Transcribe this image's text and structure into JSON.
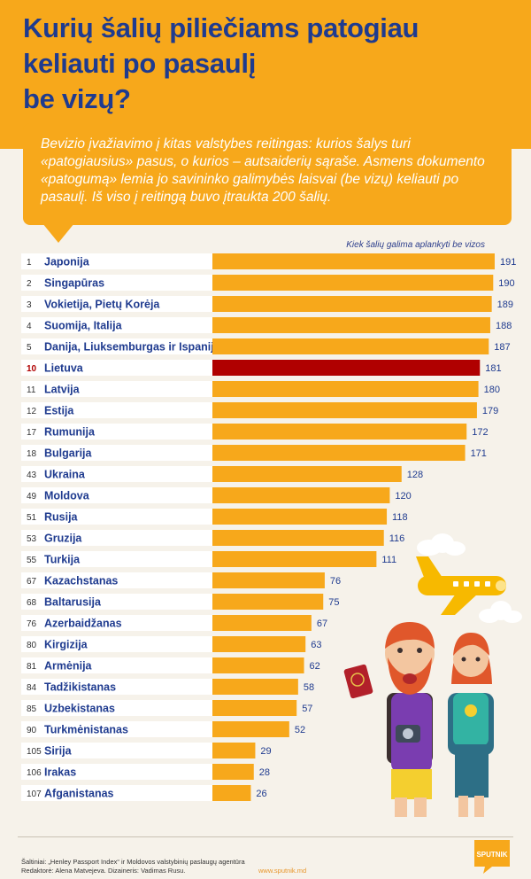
{
  "header": {
    "title_lines": [
      "Kurių šalių piliečiams patogiau",
      "keliauti po pasaulį",
      "be vizų?"
    ]
  },
  "intro": {
    "text": "Bevizio įvažiavimo į kitas valstybes reitingas: kurios šalys turi «patogiausius» pasus, o kurios – autsaiderių sąraše. Asmens dokumento «patogumą» lemia jo savininko galimybės laisvai (be vizų) keliauti po pasaulį. Iš viso į reitingą buvo įtraukta 200 šalių."
  },
  "colors": {
    "accent": "#f7a81b",
    "highlight": "#b00000",
    "text": "#1f3b8f"
  },
  "chart_data": {
    "type": "bar",
    "orientation": "horizontal",
    "axis_label": "Kiek šalių galima aplankyti be vizos",
    "xlim": [
      0,
      200
    ],
    "highlight_rank": "10",
    "rows": [
      {
        "rank": "1",
        "country": "Japonija",
        "value": 191
      },
      {
        "rank": "2",
        "country": "Singapūras",
        "value": 190
      },
      {
        "rank": "3",
        "country": "Vokietija, Pietų Korėja",
        "value": 189
      },
      {
        "rank": "4",
        "country": "Suomija, Italija",
        "value": 188
      },
      {
        "rank": "5",
        "country": "Danija, Liuksemburgas ir Ispanija",
        "value": 187
      },
      {
        "rank": "10",
        "country": "Lietuva",
        "value": 181
      },
      {
        "rank": "11",
        "country": "Latvija",
        "value": 180
      },
      {
        "rank": "12",
        "country": "Estija",
        "value": 179
      },
      {
        "rank": "17",
        "country": "Rumunija",
        "value": 172
      },
      {
        "rank": "18",
        "country": "Bulgarija",
        "value": 171
      },
      {
        "rank": "43",
        "country": "Ukraina",
        "value": 128
      },
      {
        "rank": "49",
        "country": "Moldova",
        "value": 120
      },
      {
        "rank": "51",
        "country": "Rusija",
        "value": 118
      },
      {
        "rank": "53",
        "country": "Gruzija",
        "value": 116
      },
      {
        "rank": "55",
        "country": "Turkija",
        "value": 111
      },
      {
        "rank": "67",
        "country": "Kazachstanas",
        "value": 76
      },
      {
        "rank": "68",
        "country": "Baltarusija",
        "value": 75
      },
      {
        "rank": "76",
        "country": "Azerbaidžanas",
        "value": 67
      },
      {
        "rank": "80",
        "country": "Kirgizija",
        "value": 63
      },
      {
        "rank": "81",
        "country": "Armėnija",
        "value": 62
      },
      {
        "rank": "84",
        "country": "Tadžikistanas",
        "value": 58
      },
      {
        "rank": "85",
        "country": "Uzbekistanas",
        "value": 57
      },
      {
        "rank": "90",
        "country": "Turkmėnistanas",
        "value": 52
      },
      {
        "rank": "105",
        "country": "Sirija",
        "value": 29
      },
      {
        "rank": "106",
        "country": "Irakas",
        "value": 28
      },
      {
        "rank": "107",
        "country": "Afganistanas",
        "value": 26
      }
    ]
  },
  "footer": {
    "source": "Šaltiniai: „Henley Passport Index“ ir Moldovos valstybinių paslaugų agentūra",
    "credits": "Redaktorė: Alena Matvejeva. Dizaineris: Vadimas Rusu.",
    "url": "www.sputnik.md",
    "logo": "SPUTNIK"
  }
}
